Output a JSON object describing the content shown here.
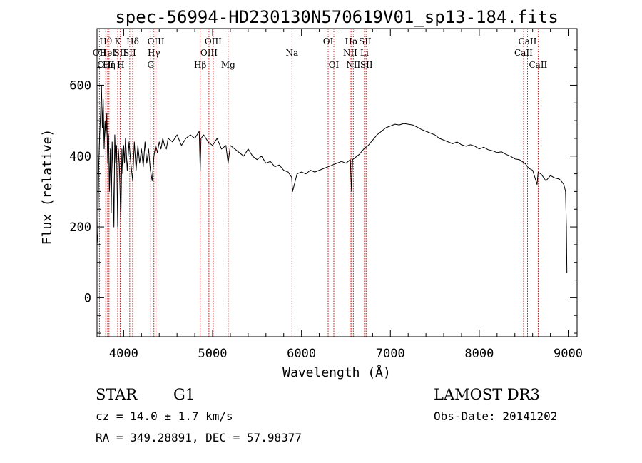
{
  "chart_data": {
    "type": "line",
    "title": "spec-56994-HD230130N570619V01_sp13-184.fits",
    "xlabel": "Wavelength (Å)",
    "ylabel": "Flux (relative)",
    "xlim": [
      3700,
      9100
    ],
    "ylim": [
      -110,
      760
    ],
    "xticks": [
      4000,
      5000,
      6000,
      7000,
      8000,
      9000
    ],
    "yticks": [
      0,
      200,
      400,
      600
    ],
    "series": [
      {
        "name": "flux",
        "x": [
          3700,
          3710,
          3720,
          3730,
          3740,
          3750,
          3760,
          3770,
          3780,
          3790,
          3800,
          3810,
          3820,
          3830,
          3840,
          3850,
          3860,
          3870,
          3880,
          3890,
          3900,
          3910,
          3920,
          3933,
          3940,
          3950,
          3968,
          3980,
          3990,
          4000,
          4010,
          4020,
          4040,
          4060,
          4080,
          4101,
          4120,
          4140,
          4160,
          4180,
          4200,
          4220,
          4240,
          4260,
          4280,
          4300,
          4320,
          4340,
          4360,
          4380,
          4400,
          4420,
          4440,
          4460,
          4480,
          4500,
          4550,
          4600,
          4650,
          4700,
          4750,
          4800,
          4850,
          4861,
          4870,
          4900,
          4950,
          5000,
          5050,
          5100,
          5150,
          5175,
          5200,
          5250,
          5300,
          5350,
          5400,
          5450,
          5500,
          5550,
          5600,
          5650,
          5700,
          5750,
          5800,
          5850,
          5890,
          5900,
          5950,
          6000,
          6050,
          6100,
          6150,
          6200,
          6250,
          6300,
          6350,
          6400,
          6450,
          6500,
          6550,
          6563,
          6575,
          6600,
          6650,
          6700,
          6750,
          6800,
          6850,
          6900,
          6950,
          7000,
          7050,
          7100,
          7150,
          7200,
          7250,
          7300,
          7350,
          7400,
          7450,
          7500,
          7550,
          7600,
          7650,
          7700,
          7750,
          7800,
          7850,
          7900,
          7950,
          8000,
          8050,
          8100,
          8150,
          8200,
          8250,
          8300,
          8350,
          8400,
          8450,
          8498,
          8520,
          8542,
          8560,
          8600,
          8650,
          8662,
          8700,
          8750,
          8800,
          8850,
          8900,
          8920,
          8950,
          8960,
          8970,
          8980,
          8985
        ],
        "values": [
          150,
          180,
          380,
          460,
          520,
          600,
          480,
          560,
          420,
          500,
          450,
          520,
          380,
          460,
          300,
          420,
          240,
          440,
          360,
          200,
          460,
          380,
          430,
          200,
          420,
          380,
          220,
          420,
          350,
          430,
          380,
          450,
          360,
          440,
          380,
          330,
          440,
          360,
          430,
          380,
          420,
          370,
          440,
          380,
          420,
          360,
          330,
          400,
          430,
          410,
          440,
          420,
          450,
          430,
          420,
          450,
          440,
          460,
          430,
          450,
          460,
          450,
          470,
          360,
          450,
          460,
          440,
          430,
          450,
          420,
          430,
          380,
          430,
          420,
          410,
          400,
          420,
          400,
          390,
          400,
          380,
          385,
          370,
          375,
          360,
          355,
          340,
          300,
          350,
          355,
          350,
          360,
          355,
          360,
          365,
          370,
          375,
          380,
          385,
          380,
          390,
          300,
          390,
          395,
          405,
          420,
          430,
          445,
          460,
          470,
          480,
          485,
          490,
          488,
          492,
          490,
          488,
          482,
          475,
          470,
          465,
          460,
          450,
          445,
          440,
          435,
          440,
          432,
          428,
          432,
          428,
          420,
          425,
          418,
          415,
          410,
          412,
          405,
          400,
          392,
          390,
          382,
          378,
          370,
          365,
          360,
          320,
          355,
          348,
          330,
          345,
          338,
          335,
          330,
          320,
          310,
          300,
          200,
          70
        ]
      }
    ],
    "lines": [
      {
        "name": "OII",
        "wl": 3727,
        "row": 2
      },
      {
        "name": "Hθ",
        "wl": 3798,
        "row": 1
      },
      {
        "name": "OIII",
        "wl": 3800,
        "row": 3
      },
      {
        "name": "HeI",
        "wl": 3820,
        "row": 2
      },
      {
        "name": "Hη",
        "wl": 3835,
        "row": 3
      },
      {
        "name": "K",
        "wl": 3933,
        "row": 1
      },
      {
        "name": "SII",
        "wl": 3960,
        "row": 2
      },
      {
        "name": "H",
        "wl": 3968,
        "row": 3
      },
      {
        "name": "Hδ",
        "wl": 4101,
        "row": 1
      },
      {
        "name": "SII",
        "wl": 4068,
        "row": 2
      },
      {
        "name": "OIII",
        "wl": 4363,
        "row": 1
      },
      {
        "name": "Hγ",
        "wl": 4340,
        "row": 2
      },
      {
        "name": "G",
        "wl": 4304,
        "row": 3
      },
      {
        "name": "Hβ",
        "wl": 4861,
        "row": 3
      },
      {
        "name": "OIII",
        "wl": 5007,
        "row": 1
      },
      {
        "name": "OIII",
        "wl": 4959,
        "row": 2
      },
      {
        "name": "Mg",
        "wl": 5175,
        "row": 3
      },
      {
        "name": "Na",
        "wl": 5893,
        "row": 2
      },
      {
        "name": "OI",
        "wl": 6300,
        "row": 1
      },
      {
        "name": "OI",
        "wl": 6364,
        "row": 3
      },
      {
        "name": "Hα",
        "wl": 6563,
        "row": 1
      },
      {
        "name": "NII",
        "wl": 6548,
        "row": 2
      },
      {
        "name": "NII",
        "wl": 6583,
        "row": 3
      },
      {
        "name": "SII",
        "wl": 6716,
        "row": 1
      },
      {
        "name": "Li",
        "wl": 6708,
        "row": 2
      },
      {
        "name": "SII",
        "wl": 6731,
        "row": 3
      },
      {
        "name": "CaII",
        "wl": 8542,
        "row": 1
      },
      {
        "name": "CaII",
        "wl": 8498,
        "row": 2
      },
      {
        "name": "CaII",
        "wl": 8662,
        "row": 3
      }
    ],
    "colors": {
      "trace": "#000000",
      "line_marker": "#cc0000"
    }
  },
  "footer": {
    "object_class": "STAR",
    "subclass": "G1",
    "survey": "LAMOST DR3",
    "cz": "cz = 14.0 ± 1.7 km/s",
    "obs_date": "Obs-Date: 20141202",
    "coords": "RA = 349.28891, DEC =  57.98377"
  }
}
